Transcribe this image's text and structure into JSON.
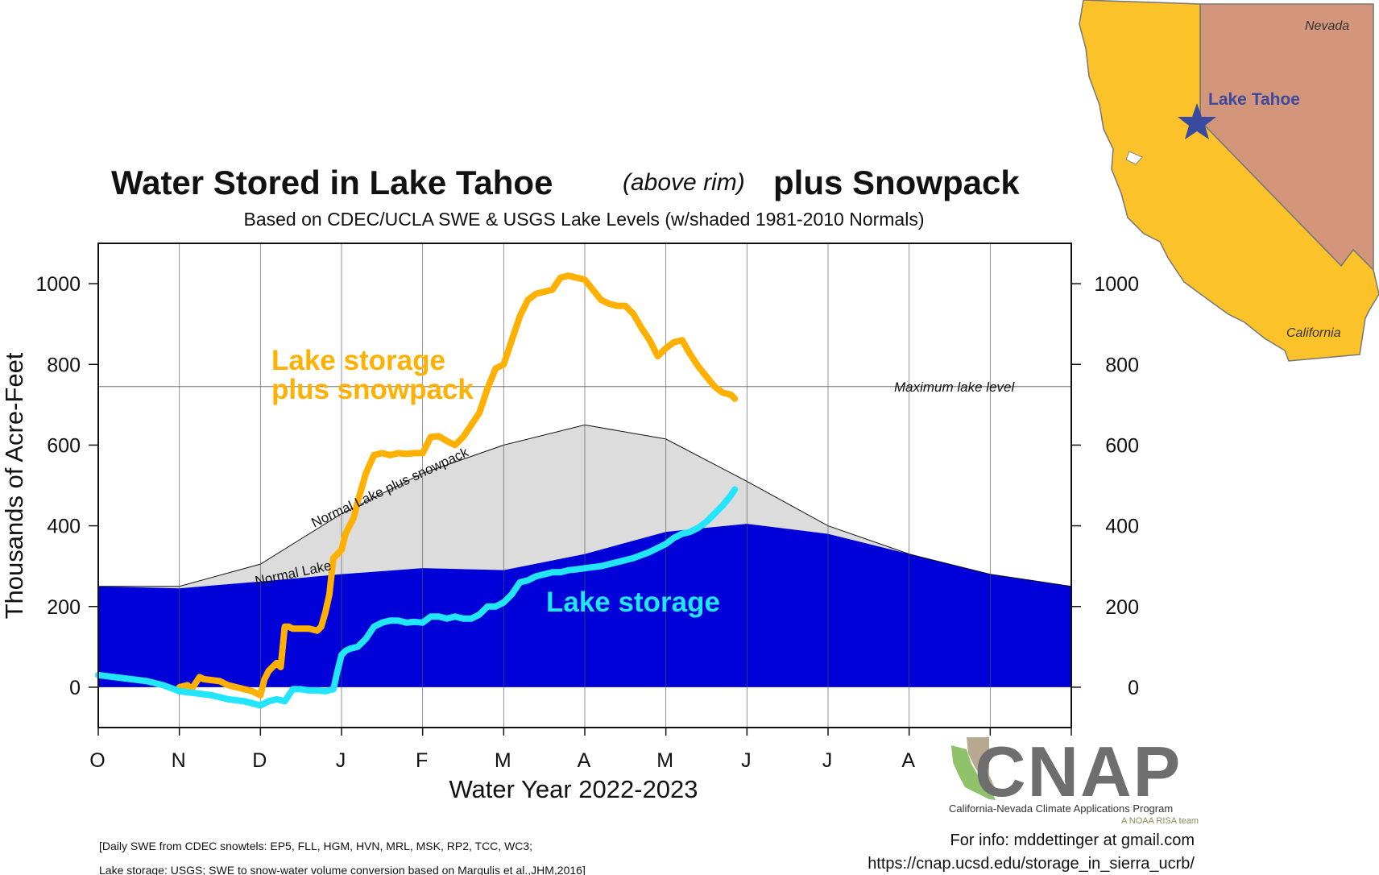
{
  "chart_data": {
    "type": "area",
    "title": "Water Stored in Lake Tahoe",
    "title_qualifier": "(above rim)",
    "title_suffix": "plus Snowpack",
    "subtitle": "Based on CDEC/UCLA SWE & USGS Lake Levels (w/shaded 1981-2010 Normals)",
    "xlabel": "Water Year 2022-2023",
    "ylabel": "Thousands of Acre-Feet",
    "x_tick_labels": [
      "O",
      "N",
      "D",
      "J",
      "F",
      "M",
      "A",
      "M",
      "J",
      "J",
      "A",
      ""
    ],
    "xlim": [
      0,
      12
    ],
    "ylim": [
      -100,
      1100
    ],
    "yticks": [
      0,
      200,
      400,
      600,
      800,
      1000
    ],
    "grid": true,
    "max_lake_level": 745,
    "max_lake_level_label": "Maximum lake level",
    "normal_lake_label": "Normal Lake",
    "normal_lake_plus_snow_label": "Normal Lake plus snowpack",
    "normals": {
      "x": [
        0,
        1,
        2,
        3,
        4,
        5,
        6,
        7,
        8,
        9,
        10,
        11,
        12
      ],
      "lake": [
        250,
        245,
        262,
        280,
        295,
        290,
        330,
        385,
        405,
        380,
        330,
        280,
        250
      ],
      "lake_plus_snowpack": [
        250,
        250,
        305,
        430,
        530,
        600,
        650,
        615,
        510,
        400,
        330,
        280,
        250
      ]
    },
    "series": [
      {
        "name": "Lake storage plus snowpack",
        "label_line1": "Lake storage",
        "label_line2": "plus snowpack",
        "color": "#FFB000",
        "x": [
          1.0,
          1.1,
          1.15,
          1.25,
          1.3,
          1.5,
          1.6,
          1.7,
          1.8,
          1.9,
          2.0,
          2.05,
          2.1,
          2.2,
          2.25,
          2.3,
          2.35,
          2.4,
          2.5,
          2.6,
          2.7,
          2.75,
          2.8,
          2.85,
          2.9,
          2.95,
          3.0,
          3.05,
          3.1,
          3.15,
          3.2,
          3.3,
          3.4,
          3.5,
          3.6,
          3.7,
          3.8,
          3.9,
          4.0,
          4.1,
          4.2,
          4.3,
          4.4,
          4.5,
          4.6,
          4.7,
          4.8,
          4.9,
          5.0,
          5.1,
          5.2,
          5.3,
          5.4,
          5.5,
          5.6,
          5.7,
          5.8,
          5.9,
          6.0,
          6.1,
          6.2,
          6.3,
          6.4,
          6.5,
          6.6,
          6.7,
          6.8,
          6.9,
          7.0,
          7.1,
          7.2,
          7.3,
          7.4,
          7.5,
          7.6,
          7.7,
          7.8,
          7.85
        ],
        "values": [
          0,
          5,
          -5,
          25,
          20,
          15,
          5,
          0,
          -5,
          -10,
          -20,
          20,
          40,
          60,
          50,
          150,
          150,
          145,
          145,
          145,
          140,
          150,
          185,
          230,
          320,
          330,
          340,
          380,
          400,
          420,
          460,
          530,
          575,
          580,
          575,
          580,
          578,
          580,
          580,
          620,
          622,
          610,
          600,
          620,
          650,
          680,
          740,
          790,
          800,
          860,
          920,
          960,
          975,
          980,
          985,
          1015,
          1020,
          1015,
          1010,
          985,
          960,
          950,
          945,
          945,
          925,
          890,
          860,
          820,
          840,
          855,
          860,
          825,
          795,
          770,
          745,
          730,
          725,
          715
        ]
      },
      {
        "name": "Lake storage",
        "label_line1": "Lake storage",
        "color": "#22E5FF",
        "x": [
          0.0,
          0.2,
          0.4,
          0.6,
          0.8,
          1.0,
          1.2,
          1.4,
          1.6,
          1.8,
          2.0,
          2.1,
          2.2,
          2.3,
          2.4,
          2.5,
          2.6,
          2.7,
          2.8,
          2.9,
          2.95,
          3.0,
          3.05,
          3.1,
          3.2,
          3.3,
          3.4,
          3.5,
          3.6,
          3.7,
          3.8,
          3.9,
          4.0,
          4.1,
          4.2,
          4.3,
          4.4,
          4.5,
          4.6,
          4.7,
          4.8,
          4.9,
          5.0,
          5.1,
          5.2,
          5.3,
          5.4,
          5.5,
          5.6,
          5.7,
          5.8,
          5.9,
          6.0,
          6.2,
          6.4,
          6.6,
          6.8,
          7.0,
          7.1,
          7.2,
          7.3,
          7.4,
          7.5,
          7.6,
          7.7,
          7.8,
          7.85
        ],
        "values": [
          30,
          25,
          20,
          15,
          5,
          -10,
          -15,
          -20,
          -30,
          -35,
          -45,
          -35,
          -30,
          -35,
          -5,
          -5,
          -8,
          -8,
          -10,
          -5,
          40,
          80,
          90,
          95,
          100,
          120,
          150,
          160,
          165,
          165,
          160,
          162,
          160,
          175,
          175,
          170,
          175,
          170,
          170,
          180,
          200,
          200,
          210,
          230,
          260,
          265,
          275,
          280,
          285,
          285,
          290,
          292,
          295,
          300,
          310,
          320,
          335,
          355,
          370,
          380,
          385,
          395,
          410,
          430,
          450,
          475,
          490
        ]
      }
    ]
  },
  "footnotes": {
    "line1": "[Daily SWE from CDEC snowtels: EP5, FLL, HGM, HVN, MRL, MSK, RP2, TCC, WC3;",
    "line2": "Lake storage: USGS; SWE to snow-water volume conversion based on Margulis et al.,JHM,2016]"
  },
  "credits": {
    "logo_text": "CNAP",
    "program": "California-Nevada Climate Applications Program",
    "team": "A NOAA RISA team",
    "info": "For info: mddettinger at gmail.com",
    "url": "https://cnap.ucsd.edu/storage_in_sierra_ucrb/"
  },
  "map": {
    "state_nevada": "Nevada",
    "state_california": "California",
    "lake": "Lake Tahoe",
    "california_color": "#FCC22A",
    "nevada_color": "#D4967A",
    "star_color": "#3A4AA0"
  }
}
